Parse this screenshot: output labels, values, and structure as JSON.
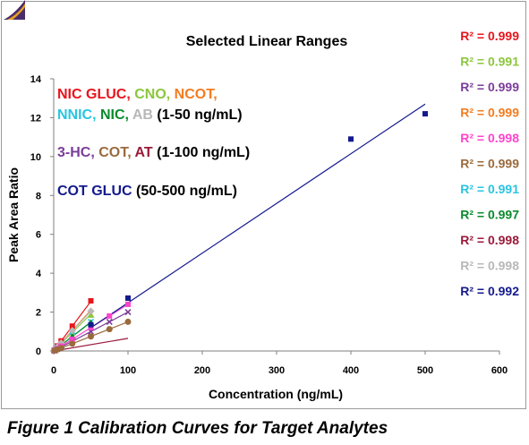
{
  "figure_caption": "Figure 1 Calibration Curves for Target Analytes",
  "chart_data": {
    "type": "scatter",
    "title": "Selected Linear Ranges",
    "xlabel": "Concentration (ng/mL)",
    "ylabel": "Peak Area Ratio",
    "xlim": [
      0,
      600
    ],
    "ylim": [
      0,
      14
    ],
    "xticks": [
      0,
      100,
      200,
      300,
      400,
      500,
      600
    ],
    "yticks": [
      0,
      2,
      4,
      6,
      8,
      10,
      12,
      14
    ],
    "annotations": {
      "group1": [
        {
          "text": "NIC GLUC, ",
          "color": "#e8141c"
        },
        {
          "text": "CNO, ",
          "color": "#8cc63e"
        },
        {
          "text": "NCOT,",
          "color": "#f47c20"
        }
      ],
      "group1b": [
        {
          "text": "NNIC, ",
          "color": "#29c5e0"
        },
        {
          "text": "NIC, ",
          "color": "#0a8a2c"
        },
        {
          "text": "AB ",
          "color": "#b8b8b8"
        },
        {
          "text": "(1-50 ng/mL)",
          "color": "#000000"
        }
      ],
      "group2": [
        {
          "text": "3-HC, ",
          "color": "#7a3d9a"
        },
        {
          "text": "COT, ",
          "color": "#9a6a3c"
        },
        {
          "text": "AT ",
          "color": "#9a1a3a"
        },
        {
          "text": "(1-100 ng/mL)",
          "color": "#000000"
        }
      ],
      "group3": [
        {
          "text": "COT GLUC ",
          "color": "#141a8c"
        },
        {
          "text": "(50-500 ng/mL)",
          "color": "#000000"
        }
      ]
    },
    "r2_labels": [
      {
        "text": "R² = 0.999",
        "color": "#e8141c"
      },
      {
        "text": "R² = 0.991",
        "color": "#8cc63e"
      },
      {
        "text": "R² = 0.999",
        "color": "#7a3d9a"
      },
      {
        "text": "R² = 0.999",
        "color": "#f47c20"
      },
      {
        "text": "R² = 0.998",
        "color": "#ff44cc"
      },
      {
        "text": "R² = 0.999",
        "color": "#9a6a3c"
      },
      {
        "text": "R² = 0.991",
        "color": "#29c5e0"
      },
      {
        "text": "R² = 0.997",
        "color": "#0a8a2c"
      },
      {
        "text": "R² = 0.998",
        "color": "#9a1a3a"
      },
      {
        "text": "R² = 0.998",
        "color": "#b8b8b8"
      },
      {
        "text": "R² = 0.992",
        "color": "#141a8c"
      }
    ],
    "series": [
      {
        "color": "#e8141c",
        "marker": "square",
        "x": [
          1,
          5,
          10,
          25,
          50
        ],
        "y": [
          0.05,
          0.26,
          0.52,
          1.28,
          2.58
        ],
        "fit": [
          [
            0,
            0
          ],
          [
            50,
            2.55
          ]
        ]
      },
      {
        "color": "#8cc63e",
        "marker": "triangle",
        "x": [
          1,
          5,
          10,
          25,
          50
        ],
        "y": [
          0.04,
          0.18,
          0.35,
          0.95,
          1.85
        ],
        "fit": [
          [
            0,
            0
          ],
          [
            50,
            1.9
          ]
        ]
      },
      {
        "color": "#f47c20",
        "marker": "diamond",
        "x": [
          1,
          5,
          10,
          25,
          50
        ],
        "y": [
          0.04,
          0.2,
          0.42,
          1.05,
          2.05
        ],
        "fit": [
          [
            0,
            0
          ],
          [
            50,
            2.1
          ]
        ]
      },
      {
        "color": "#29c5e0",
        "marker": "x",
        "x": [
          1,
          5,
          10,
          25,
          50
        ],
        "y": [
          0.03,
          0.16,
          0.3,
          0.8,
          1.5
        ],
        "fit": [
          [
            0,
            0
          ],
          [
            50,
            1.5
          ]
        ]
      },
      {
        "color": "#0a8a2c",
        "marker": "triangle",
        "x": [
          1,
          5,
          10,
          25,
          50
        ],
        "y": [
          0.03,
          0.15,
          0.3,
          0.75,
          1.45
        ],
        "fit": [
          [
            0,
            0
          ],
          [
            50,
            1.48
          ]
        ]
      },
      {
        "color": "#b8b8b8",
        "marker": "diamond",
        "x": [
          1,
          5,
          10,
          25,
          50
        ],
        "y": [
          0.05,
          0.22,
          0.42,
          1.05,
          2.05
        ],
        "fit": [
          [
            0,
            0
          ],
          [
            50,
            2.05
          ]
        ]
      },
      {
        "color": "#7a3d9a",
        "marker": "x",
        "x": [
          1,
          5,
          10,
          25,
          50,
          75,
          100
        ],
        "y": [
          0.02,
          0.1,
          0.2,
          0.5,
          1.0,
          1.5,
          2.0
        ],
        "fit": [
          [
            0,
            0
          ],
          [
            100,
            2.0
          ]
        ]
      },
      {
        "color": "#ff44cc",
        "marker": "square",
        "x": [
          1,
          5,
          10,
          25,
          50,
          75,
          100
        ],
        "y": [
          0.03,
          0.12,
          0.25,
          0.6,
          1.2,
          1.8,
          2.4
        ],
        "fit": [
          [
            0,
            0
          ],
          [
            100,
            2.4
          ]
        ]
      },
      {
        "color": "#9a6a3c",
        "marker": "circle",
        "x": [
          1,
          5,
          10,
          25,
          50,
          75,
          100
        ],
        "y": [
          0.02,
          0.08,
          0.15,
          0.38,
          0.75,
          1.12,
          1.5
        ],
        "fit": [
          [
            0,
            0
          ],
          [
            100,
            1.5
          ]
        ]
      },
      {
        "color": "#9a1a3a",
        "marker": "none",
        "x": [],
        "y": [],
        "fit": [
          [
            0,
            0
          ],
          [
            100,
            0.65
          ]
        ]
      },
      {
        "color": "#141a8c",
        "marker": "square",
        "x": [
          50,
          100,
          400,
          500
        ],
        "y": [
          1.35,
          2.72,
          10.9,
          12.2
        ],
        "fit": [
          [
            50,
            1.2
          ],
          [
            500,
            12.7
          ]
        ]
      }
    ]
  }
}
